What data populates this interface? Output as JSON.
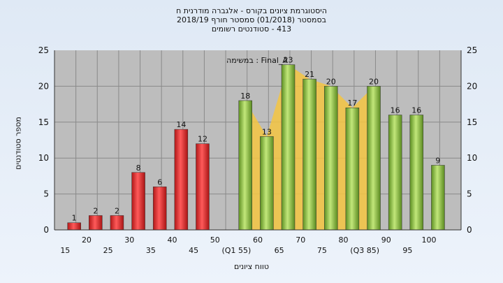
{
  "chart_data": {
    "type": "bar",
    "title_lines": [
      "היסטוגרמת ציונים בקורס - אלגברה מודרנית ח",
      "בסמסטר  (01/2018)  סמסטר חורף  2018/19",
      "413 - סטודנטים רשומים"
    ],
    "xlabel": "טווח ציונים",
    "ylabel": "מספר סטודנטים",
    "ylim": [
      0,
      25
    ],
    "yticks": [
      0,
      5,
      10,
      15,
      20,
      25
    ],
    "annotation": "במשימה : Final_A",
    "x_tick_labels": [
      "15",
      "20",
      "25",
      "30",
      "35",
      "40",
      "45",
      "50",
      "(Q1 55)",
      "60",
      "65",
      "70",
      "75",
      "80",
      "(Q3 85)",
      "90",
      "95",
      "100"
    ],
    "grid": true,
    "series": [
      {
        "name": "",
        "color": "#e02a2a",
        "points": [
          {
            "x": "20",
            "value": 1
          },
          {
            "x": "25",
            "value": 2
          },
          {
            "x": "30",
            "value": 2
          },
          {
            "x": "35",
            "value": 8
          },
          {
            "x": "40",
            "value": 6
          },
          {
            "x": "45",
            "value": 14
          },
          {
            "x": "50",
            "value": 12
          }
        ]
      },
      {
        "name": "",
        "color": "#8cc63f",
        "points": [
          {
            "x": "60",
            "value": 18
          },
          {
            "x": "65",
            "value": 13
          },
          {
            "x": "70",
            "value": 23
          },
          {
            "x": "75",
            "value": 21
          },
          {
            "x": "80",
            "value": 20
          },
          {
            "x": "85",
            "value": 17
          },
          {
            "x": "90",
            "value": 20
          },
          {
            "x": "95",
            "value": 16
          },
          {
            "x": "100",
            "value": 16
          },
          {
            "x": "100+",
            "value": 9
          }
        ]
      }
    ],
    "iqr_band_color": "#f5c542"
  }
}
